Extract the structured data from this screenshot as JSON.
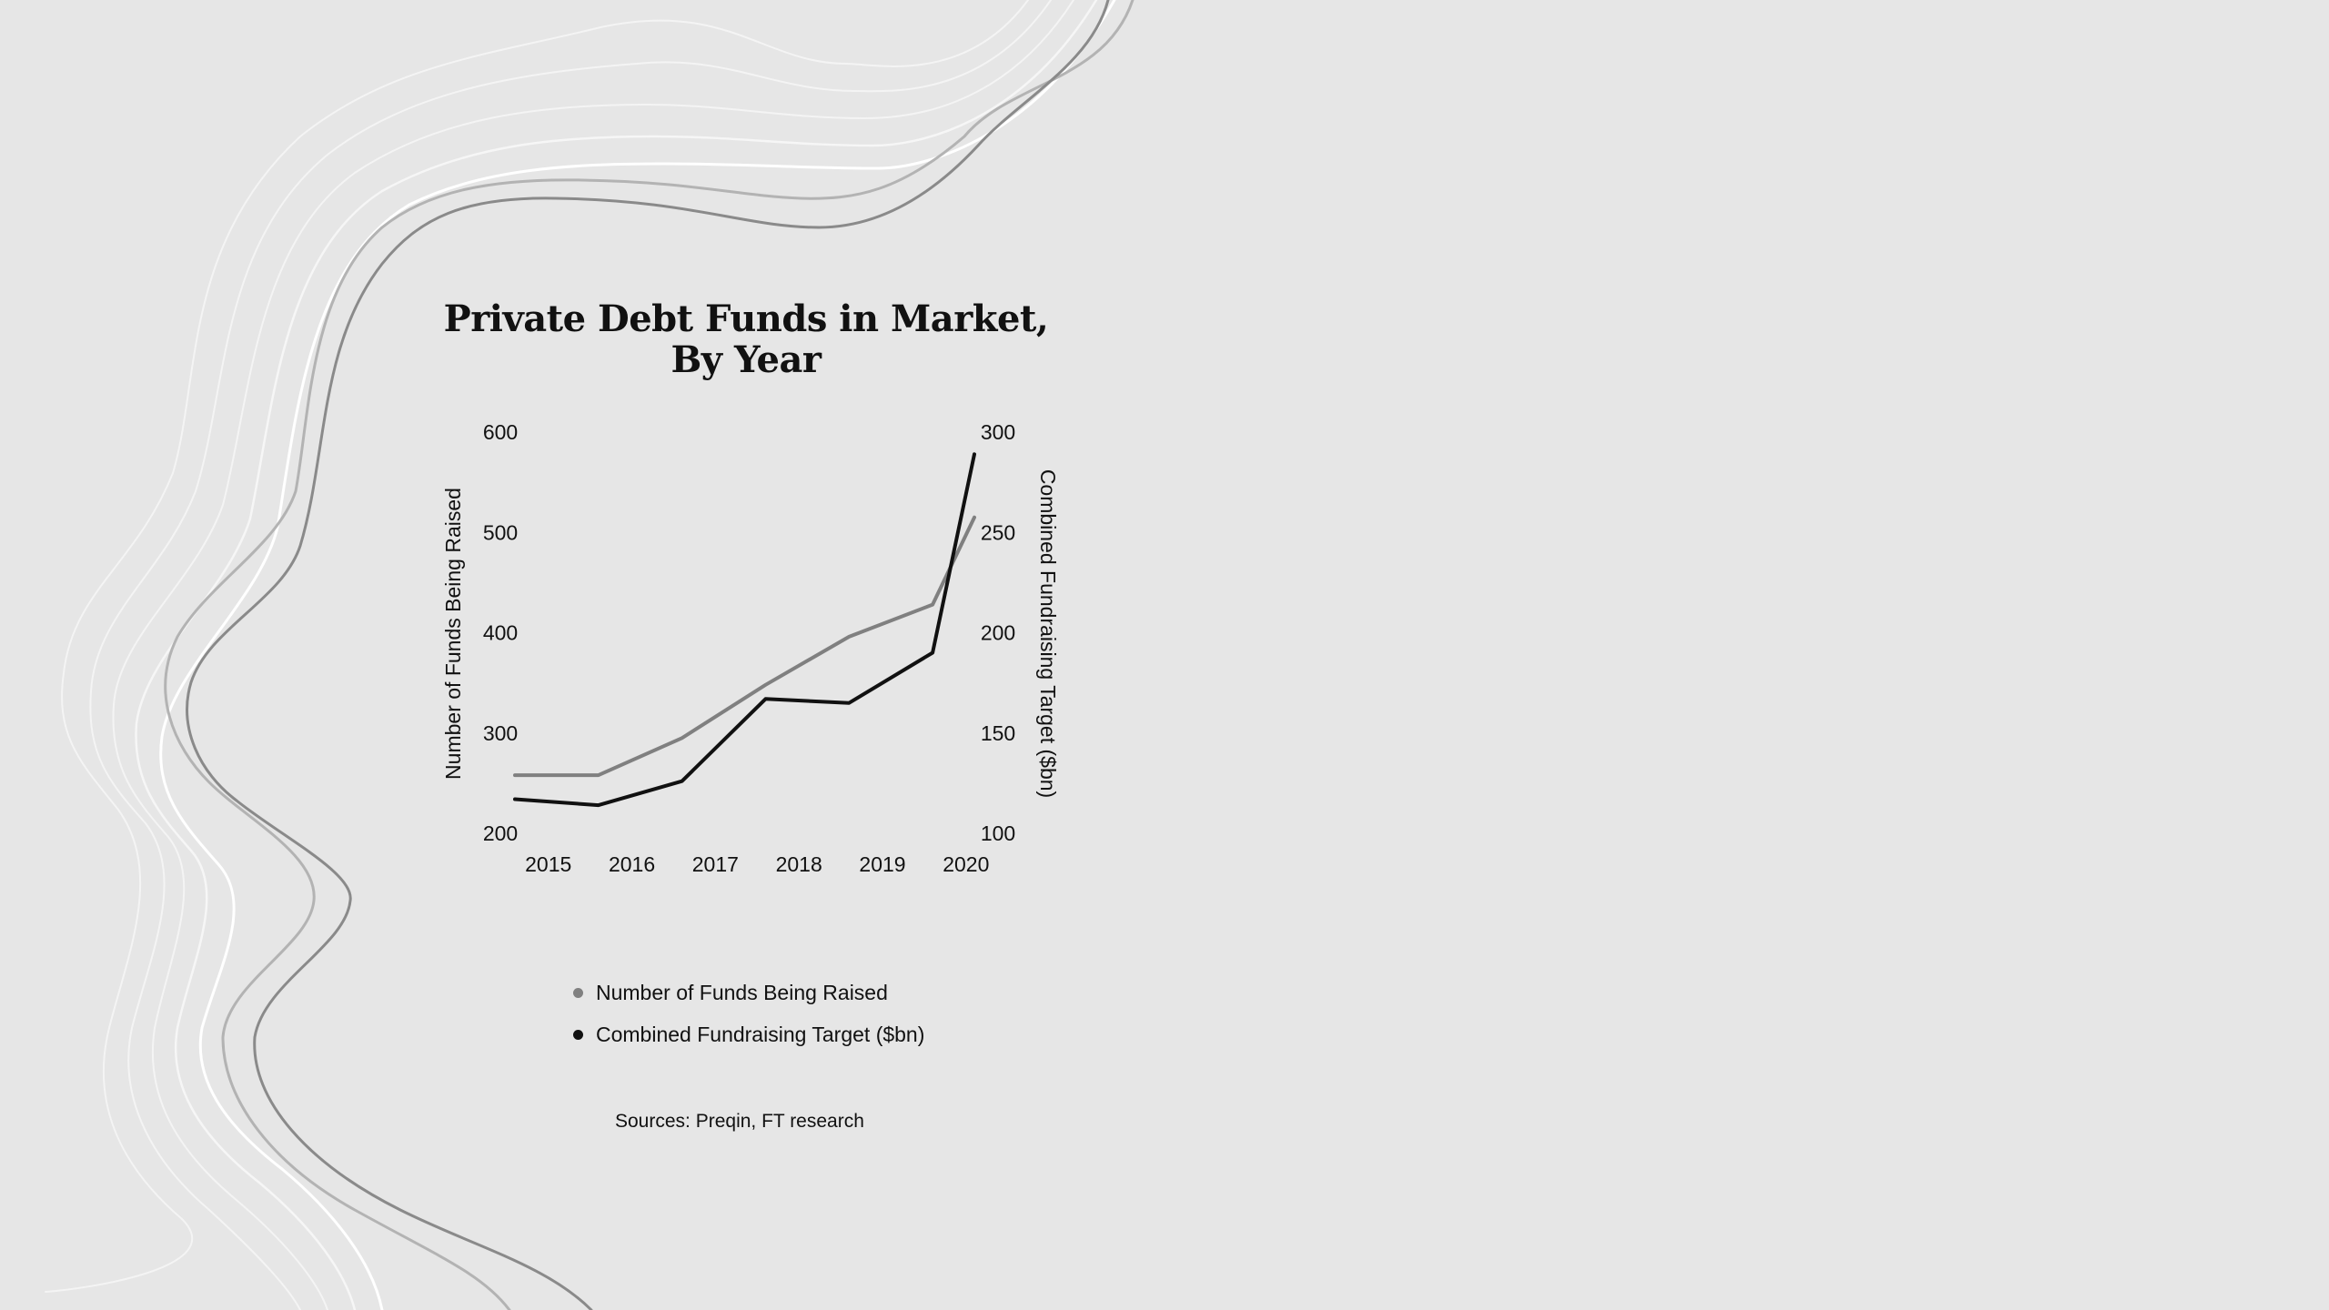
{
  "chart_data": {
    "type": "line",
    "title_lines": [
      "Private Debt Funds in Market,",
      "By Year"
    ],
    "x": [
      2014.6,
      2015.6,
      2016.6,
      2017.6,
      2018.6,
      2019.6,
      2020.1
    ],
    "x_ticks": [
      "2015",
      "2016",
      "2017",
      "2018",
      "2019",
      "2020"
    ],
    "y_left": {
      "label": "Number of Funds Being Raised",
      "ticks": [
        "200",
        "300",
        "400",
        "500",
        "600"
      ],
      "lim": [
        200,
        600
      ]
    },
    "y_right": {
      "label": "Combined Fundraising Target ($bn)",
      "ticks": [
        "100",
        "150",
        "200",
        "250",
        "300"
      ],
      "lim": [
        100,
        300
      ]
    },
    "series": [
      {
        "name": "Number of Funds Being Raised",
        "axis": "left",
        "color": "#808080",
        "values": [
          258,
          258,
          295,
          348,
          396,
          428,
          515
        ]
      },
      {
        "name": "Combined Fundraising Target ($bn)",
        "axis": "right",
        "color": "#111111",
        "values": [
          117,
          114,
          126,
          167,
          165,
          190,
          289
        ]
      }
    ],
    "grid": false,
    "legend_position": "bottom"
  },
  "legend": [
    {
      "label": "Number of Funds Being Raised",
      "color": "#808080"
    },
    {
      "label": "Combined Fundraising Target ($bn)",
      "color": "#111111"
    }
  ],
  "source": "Sources: Preqin, FT research"
}
